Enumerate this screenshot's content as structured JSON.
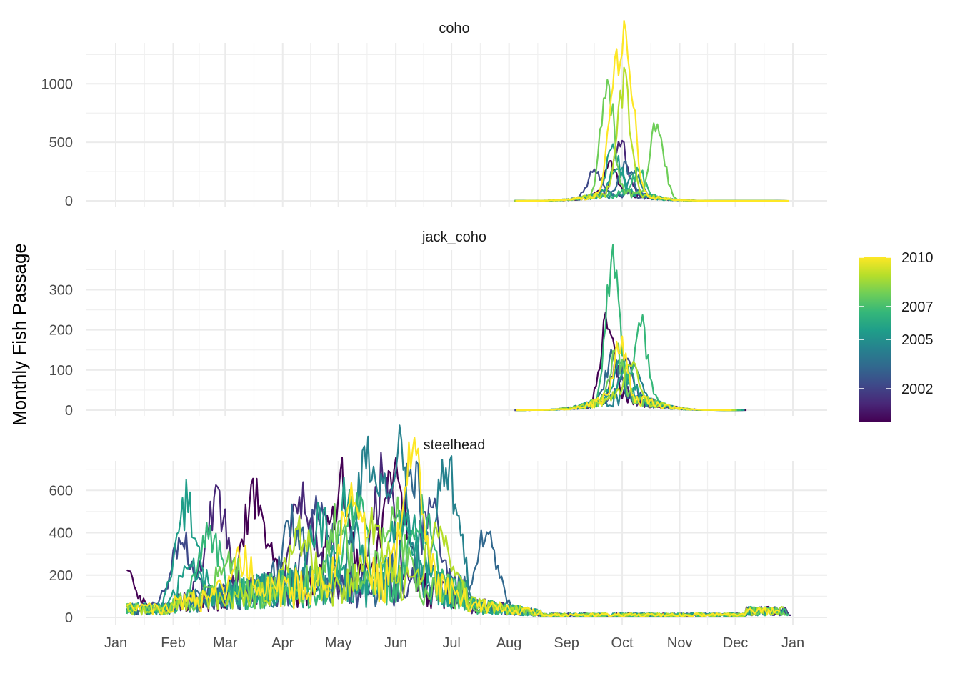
{
  "chart_data": {
    "type": "line",
    "ylabel": "Monthly Fish Passage",
    "xlabel": "",
    "x_axis": {
      "tick_labels": [
        "Jan",
        "Feb",
        "Mar",
        "Apr",
        "May",
        "Jun",
        "Jul",
        "Aug",
        "Sep",
        "Oct",
        "Nov",
        "Dec",
        "Jan"
      ]
    },
    "grid": true,
    "legend": {
      "placement": "right",
      "type": "colorbar",
      "palette": "viridis",
      "range": [
        2000,
        2010
      ],
      "tick_labels": [
        "2010",
        "2007",
        "2005",
        "2002"
      ],
      "tick_values": [
        2010,
        2007,
        2005,
        2002
      ],
      "colors": [
        "#440154",
        "#482878",
        "#3e4989",
        "#31688e",
        "#26828e",
        "#1f9e89",
        "#35b779",
        "#6ece58",
        "#b5de2b",
        "#fde725"
      ]
    },
    "panels": [
      {
        "title": "coho",
        "ylim": [
          0,
          1300
        ],
        "yticks": [
          0,
          500,
          1000
        ],
        "ytick_labels": [
          "0",
          "500",
          "1000"
        ],
        "active_days": [
          210,
          363
        ],
        "series": [
          {
            "year": 2000,
            "peaks": [
              [
                267,
                260
              ]
            ]
          },
          {
            "year": 2001,
            "peaks": [
              [
                272,
                490
              ]
            ]
          },
          {
            "year": 2002,
            "peaks": [
              [
                258,
                230
              ]
            ]
          },
          {
            "year": 2003,
            "peaks": [
              [
                275,
                270
              ]
            ]
          },
          {
            "year": 2004,
            "peaks": [
              [
                280,
                200
              ]
            ]
          },
          {
            "year": 2005,
            "peaks": [
              [
                270,
                250
              ]
            ]
          },
          {
            "year": 2006,
            "peaks": [
              [
                268,
                420
              ]
            ]
          },
          {
            "year": 2007,
            "peaks": [
              [
                282,
                220
              ]
            ]
          },
          {
            "year": 2008,
            "peaks": [
              [
                265,
                980
              ],
              [
                292,
                710
              ]
            ]
          },
          {
            "year": 2009,
            "peaks": [
              [
                274,
                980
              ]
            ]
          },
          {
            "year": 2010,
            "peaks": [
              [
                276,
                1280
              ],
              [
                269,
                880
              ]
            ]
          }
        ]
      },
      {
        "title": "jack_coho",
        "ylim": [
          0,
          400
        ],
        "yticks": [
          0,
          100,
          200,
          300
        ],
        "ytick_labels": [
          "0",
          "100",
          "200",
          "300"
        ],
        "active_days": [
          210,
          340
        ],
        "series": [
          {
            "year": 2000,
            "peaks": [
              [
                265,
                220
              ]
            ]
          },
          {
            "year": 2001,
            "peaks": [
              [
                270,
                90
              ]
            ]
          },
          {
            "year": 2002,
            "peaks": [
              [
                275,
                110
              ]
            ]
          },
          {
            "year": 2003,
            "peaks": [
              [
                268,
                130
              ]
            ]
          },
          {
            "year": 2004,
            "peaks": [
              [
                280,
                80
              ]
            ]
          },
          {
            "year": 2005,
            "peaks": [
              [
                272,
                95
              ]
            ]
          },
          {
            "year": 2006,
            "peaks": [
              [
                276,
                70
              ]
            ]
          },
          {
            "year": 2007,
            "peaks": [
              [
                268,
                375
              ],
              [
                283,
                210
              ]
            ]
          },
          {
            "year": 2008,
            "peaks": [
              [
                270,
                120
              ]
            ]
          },
          {
            "year": 2009,
            "peaks": [
              [
                278,
                100
              ]
            ]
          },
          {
            "year": 2010,
            "peaks": [
              [
                272,
                140
              ]
            ]
          }
        ]
      },
      {
        "title": "steelhead",
        "ylim": [
          0,
          730
        ],
        "yticks": [
          0,
          200,
          400,
          600
        ],
        "ytick_labels": [
          "0",
          "200",
          "400",
          "600"
        ],
        "active_days": [
          0,
          364
        ],
        "series": [
          {
            "year": 2000,
            "peaks": [
              [
                4,
                210
              ],
              [
                75,
                510
              ],
              [
                120,
                500
              ],
              [
                150,
                640
              ]
            ]
          },
          {
            "year": 2001,
            "peaks": [
              [
                54,
                470
              ],
              [
                100,
                450
              ],
              [
                145,
                560
              ]
            ]
          },
          {
            "year": 2002,
            "peaks": [
              [
                35,
                300
              ],
              [
                110,
                420
              ],
              [
                170,
                380
              ]
            ]
          },
          {
            "year": 2003,
            "peaks": [
              [
                95,
                330
              ],
              [
                160,
                610
              ],
              [
                200,
                360
              ]
            ]
          },
          {
            "year": 2004,
            "peaks": [
              [
                135,
                710
              ],
              [
                152,
                700
              ],
              [
                179,
                630
              ]
            ]
          },
          {
            "year": 2005,
            "peaks": [
              [
                40,
                180
              ],
              [
                125,
                420
              ],
              [
                155,
                400
              ]
            ]
          },
          {
            "year": 2006,
            "peaks": [
              [
                38,
                520
              ],
              [
                110,
                340
              ],
              [
                160,
                360
              ]
            ]
          },
          {
            "year": 2007,
            "peaks": [
              [
                50,
                330
              ],
              [
                130,
                360
              ],
              [
                165,
                340
              ]
            ]
          },
          {
            "year": 2008,
            "peaks": [
              [
                60,
                200
              ],
              [
                120,
                300
              ],
              [
                150,
                330
              ]
            ]
          },
          {
            "year": 2009,
            "peaks": [
              [
                100,
                280
              ],
              [
                140,
                310
              ],
              [
                175,
                300
              ]
            ]
          },
          {
            "year": 2010,
            "peaks": [
              [
                68,
                180
              ],
              [
                127,
                490
              ],
              [
                160,
                650
              ]
            ]
          }
        ]
      }
    ]
  }
}
